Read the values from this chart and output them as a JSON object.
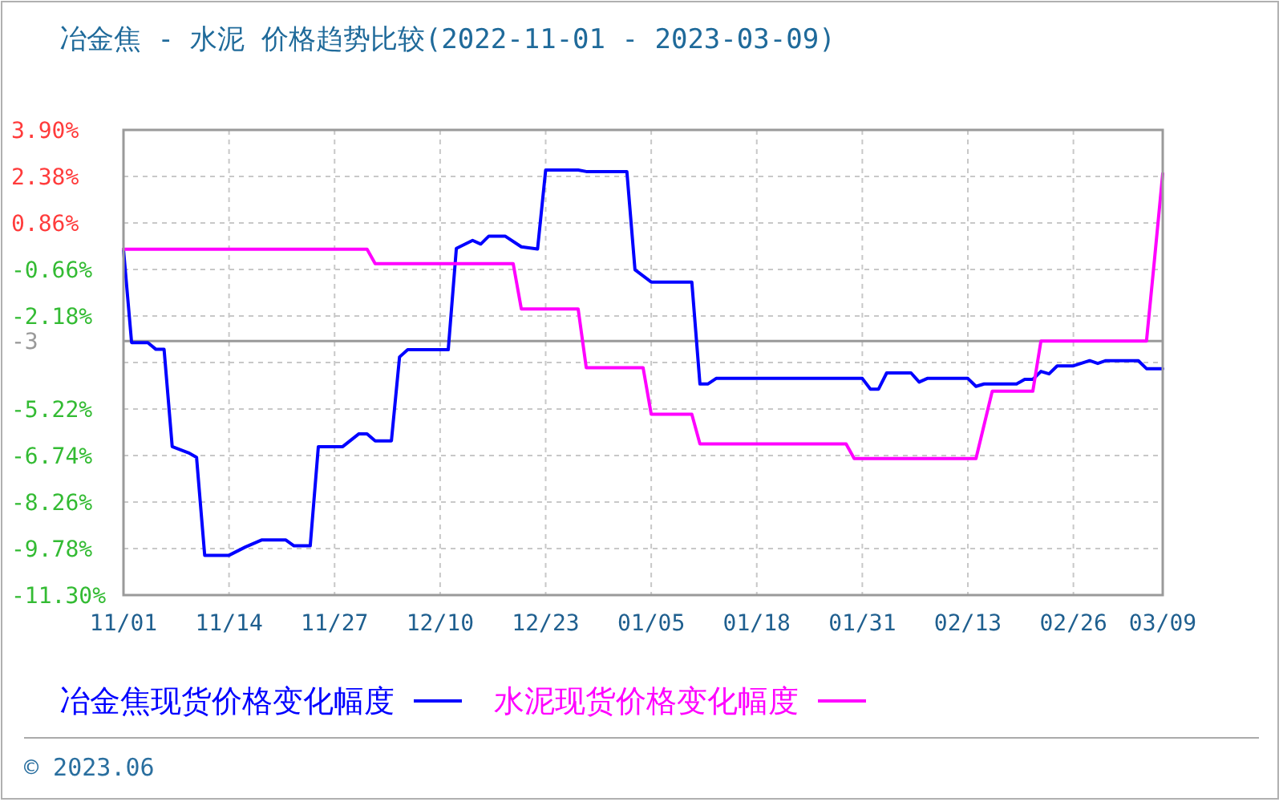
{
  "chart_data": {
    "type": "line",
    "title": "冶金焦 - 水泥 价格趋势比较(2022-11-01 - 2023-03-09)",
    "xlim": [
      "2022-11-01",
      "2023-03-09"
    ],
    "xticks": [
      {
        "value": "2022-11-01",
        "label": "11/01"
      },
      {
        "value": "2022-11-14",
        "label": "11/14"
      },
      {
        "value": "2022-11-27",
        "label": "11/27"
      },
      {
        "value": "2022-12-10",
        "label": "12/10"
      },
      {
        "value": "2022-12-23",
        "label": "12/23"
      },
      {
        "value": "2023-01-05",
        "label": "01/05"
      },
      {
        "value": "2023-01-18",
        "label": "01/18"
      },
      {
        "value": "2023-01-31",
        "label": "01/31"
      },
      {
        "value": "2023-02-13",
        "label": "02/13"
      },
      {
        "value": "2023-02-26",
        "label": "02/26"
      },
      {
        "value": "2023-03-09",
        "label": "03/09"
      }
    ],
    "ylim": [
      -11.3,
      3.9
    ],
    "yticks": [
      {
        "value": 3.9,
        "label": "3.90%"
      },
      {
        "value": 2.38,
        "label": "2.38%"
      },
      {
        "value": 0.86,
        "label": "0.86%"
      },
      {
        "value": -0.66,
        "label": "-0.66%"
      },
      {
        "value": -2.18,
        "label": "-2.18%"
      },
      {
        "value": -3.7,
        "label": null
      },
      {
        "value": -5.22,
        "label": "-5.22%"
      },
      {
        "value": -6.74,
        "label": "-6.74%"
      },
      {
        "value": -8.26,
        "label": "-8.26%"
      },
      {
        "value": -9.78,
        "label": "-9.78%"
      },
      {
        "value": -11.3,
        "label": "-11.30%"
      }
    ],
    "grid": true,
    "legend": "bottom",
    "line_style": "solid",
    "ref_lines": [
      {
        "axis": "y",
        "value": -3,
        "label": "-3",
        "color": "#999999"
      }
    ],
    "series": [
      {
        "name": "冶金焦现货价格变化幅度",
        "color": "#0000ff",
        "x": [
          "2022-11-01",
          "2022-11-02",
          "2022-11-04",
          "2022-11-05",
          "2022-11-06",
          "2022-11-07",
          "2022-11-09",
          "2022-11-10",
          "2022-11-11",
          "2022-11-14",
          "2022-11-16",
          "2022-11-18",
          "2022-11-21",
          "2022-11-22",
          "2022-11-24",
          "2022-11-25",
          "2022-11-28",
          "2022-11-30",
          "2022-12-01",
          "2022-12-02",
          "2022-12-04",
          "2022-12-05",
          "2022-12-06",
          "2022-12-11",
          "2022-12-12",
          "2022-12-14",
          "2022-12-15",
          "2022-12-16",
          "2022-12-18",
          "2022-12-20",
          "2022-12-22",
          "2022-12-23",
          "2022-12-27",
          "2022-12-28",
          "2023-01-02",
          "2023-01-03",
          "2023-01-05",
          "2023-01-10",
          "2023-01-11",
          "2023-01-12",
          "2023-01-13",
          "2023-01-31",
          "2023-02-01",
          "2023-02-02",
          "2023-02-03",
          "2023-02-06",
          "2023-02-07",
          "2023-02-08",
          "2023-02-13",
          "2023-02-14",
          "2023-02-15",
          "2023-02-19",
          "2023-02-20",
          "2023-02-21",
          "2023-02-22",
          "2023-02-23",
          "2023-02-24",
          "2023-02-26",
          "2023-02-28",
          "2023-03-01",
          "2023-03-02",
          "2023-03-06",
          "2023-03-07",
          "2023-03-09"
        ],
        "values": [
          0,
          -3.05,
          -3.05,
          -3.27,
          -3.27,
          -6.45,
          -6.65,
          -6.8,
          -10.0,
          -10.0,
          -9.73,
          -9.5,
          -9.5,
          -9.69,
          -9.69,
          -6.45,
          -6.45,
          -6.03,
          -6.03,
          -6.26,
          -6.26,
          -3.52,
          -3.28,
          -3.28,
          0.03,
          0.29,
          0.17,
          0.43,
          0.43,
          0.08,
          0.01,
          2.59,
          2.59,
          2.54,
          2.54,
          -0.67,
          -1.07,
          -1.07,
          -4.4,
          -4.4,
          -4.22,
          -4.22,
          -4.57,
          -4.57,
          -4.04,
          -4.04,
          -4.34,
          -4.22,
          -4.22,
          -4.48,
          -4.4,
          -4.4,
          -4.25,
          -4.25,
          -3.99,
          -4.07,
          -3.81,
          -3.81,
          -3.64,
          -3.73,
          -3.64,
          -3.64,
          -3.9,
          -3.9
        ]
      },
      {
        "name": "水泥现货价格变化幅度",
        "color": "#ff00ff",
        "x": [
          "2022-11-01",
          "2022-12-01",
          "2022-12-02",
          "2022-12-19",
          "2022-12-20",
          "2022-12-27",
          "2022-12-28",
          "2023-01-04",
          "2023-01-05",
          "2023-01-10",
          "2023-01-11",
          "2023-01-29",
          "2023-01-30",
          "2023-02-14",
          "2023-02-16",
          "2023-02-21",
          "2023-02-22",
          "2023-03-07",
          "2023-03-08",
          "2023-03-09"
        ],
        "values": [
          0,
          0,
          -0.47,
          -0.47,
          -1.95,
          -1.95,
          -3.87,
          -3.87,
          -5.39,
          -5.39,
          -6.36,
          -6.36,
          -6.84,
          -6.84,
          -4.64,
          -4.64,
          -3.0,
          -3.0,
          -0.3,
          2.47
        ]
      }
    ],
    "annotations": [
      "© 2023.06"
    ]
  }
}
